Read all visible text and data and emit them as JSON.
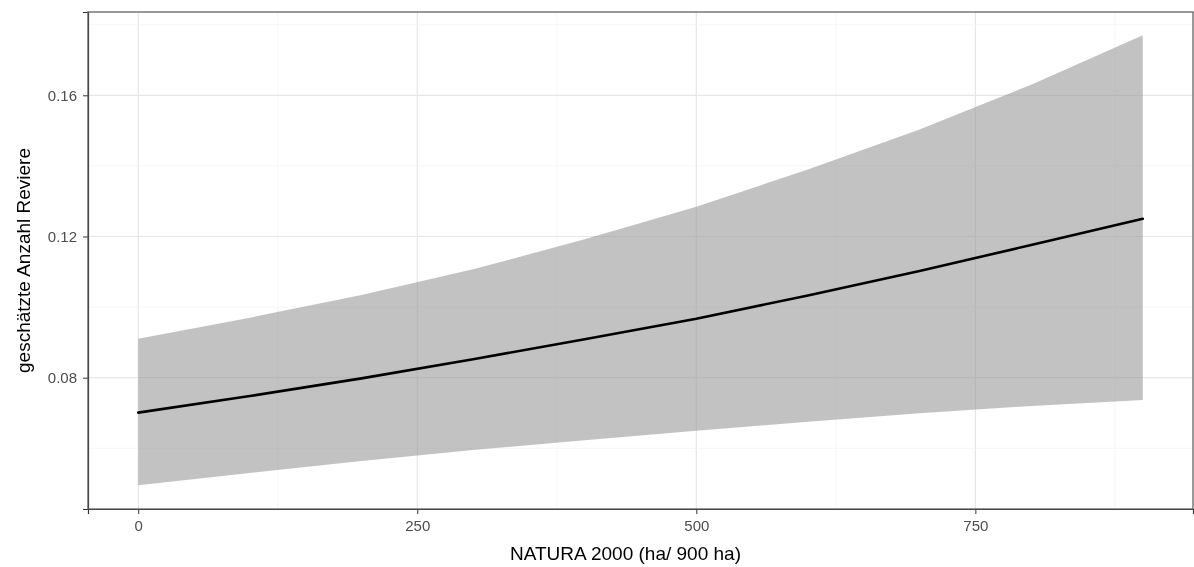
{
  "chart_data": {
    "type": "line",
    "xlabel": "NATURA 2000 (ha/ 900 ha)",
    "ylabel": "geschätzte Anzahl Reviere",
    "x": [
      0,
      100,
      200,
      300,
      400,
      500,
      600,
      700,
      800,
      900
    ],
    "series": [
      {
        "color": "#000000",
        "values": [
          0.0701,
          0.0748,
          0.0798,
          0.0852,
          0.0909,
          0.0967,
          0.1033,
          0.1102,
          0.1176,
          0.125
        ],
        "lower": [
          0.0495,
          0.053,
          0.0564,
          0.0595,
          0.0623,
          0.065,
          0.0675,
          0.0699,
          0.072,
          0.0737
        ],
        "upper": [
          0.091,
          0.097,
          0.1034,
          0.1107,
          0.1192,
          0.1284,
          0.139,
          0.1503,
          0.163,
          0.177
        ]
      }
    ],
    "xlim": [
      -45,
      945
    ],
    "ylim": [
      0.0428,
      0.1836
    ],
    "xticks": [
      0,
      250,
      500,
      750
    ],
    "yticks": [
      {
        "value": 0.08,
        "label": "0.08"
      },
      {
        "value": 0.12,
        "label": "0.12"
      },
      {
        "value": 0.16,
        "label": "0.16"
      }
    ],
    "grid": true,
    "marker": "none",
    "line_style": "solid"
  }
}
